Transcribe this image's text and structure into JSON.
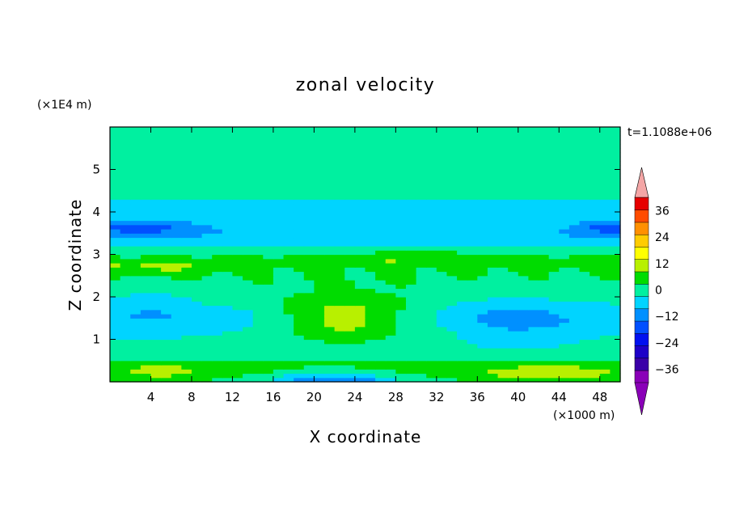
{
  "chart_data": {
    "type": "heatmap",
    "title": "zonal velocity",
    "xlabel": "X coordinate",
    "ylabel": "Z coordinate",
    "x_units": "(×1000 m)",
    "y_units": "(×1E4 m)",
    "time_label": "t=1.1088e+06",
    "xlim": [
      0,
      50
    ],
    "ylim": [
      0,
      6
    ],
    "x_ticks": [
      4,
      8,
      12,
      16,
      20,
      24,
      28,
      32,
      36,
      40,
      44,
      48
    ],
    "y_ticks": [
      1,
      2,
      3,
      4,
      5
    ],
    "colorbar": {
      "levels": [
        -42,
        -36,
        -30,
        -24,
        -18,
        -12,
        -6,
        0,
        6,
        12,
        18,
        24,
        30,
        36,
        42
      ],
      "tick_labels": [
        "36",
        "24",
        "12",
        "0",
        "−12",
        "−24",
        "−36"
      ],
      "tick_values": [
        36,
        24,
        12,
        0,
        -12,
        -24,
        -36
      ],
      "colors": [
        "#8a00b8",
        "#3a00a8",
        "#1e00c8",
        "#0010f0",
        "#0050ff",
        "#0090ff",
        "#00d4ff",
        "#00f0a0",
        "#00dc00",
        "#b8f000",
        "#ffff00",
        "#ffcc00",
        "#ff9000",
        "#ff4c00",
        "#e60000"
      ],
      "over_color": "#f4a6a6",
      "under_color": "#8a00b8"
    },
    "field": {
      "nx": 50,
      "nz": 60,
      "components": [
        {
          "shape": "zband",
          "z": 0.3,
          "w": 0.3,
          "amp": 6
        },
        {
          "shape": "zband",
          "z": 0.8,
          "w": 0.35,
          "amp": -2
        },
        {
          "shape": "zband",
          "z": 1.5,
          "w": 0.35,
          "amp": -6
        },
        {
          "shape": "zband",
          "z": 2.5,
          "w": 0.3,
          "amp": 3
        },
        {
          "shape": "zband",
          "z": 2.85,
          "w": 0.2,
          "amp": 5
        },
        {
          "shape": "zband",
          "z": 3.5,
          "w": 0.3,
          "amp": -8
        },
        {
          "shape": "zband",
          "z": 4.1,
          "w": 0.35,
          "amp": -3
        },
        {
          "shape": "blob",
          "x": 23,
          "z": 1.5,
          "sx": 7,
          "sz": 0.55,
          "amp": 17
        },
        {
          "shape": "blob",
          "x": 40,
          "z": 1.5,
          "sx": 5,
          "sz": 0.5,
          "amp": -6
        },
        {
          "shape": "blob",
          "x": 4,
          "z": 1.8,
          "sx": 4,
          "sz": 0.5,
          "amp": -4
        },
        {
          "shape": "blob",
          "x": 3,
          "z": 3.65,
          "sx": 5,
          "sz": 0.2,
          "amp": -10
        },
        {
          "shape": "blob",
          "x": 49,
          "z": 3.65,
          "sx": 3,
          "sz": 0.2,
          "amp": -10
        },
        {
          "shape": "blob",
          "x": 22,
          "z": 0.0,
          "sx": 6,
          "sz": 0.25,
          "amp": -18
        },
        {
          "shape": "blob",
          "x": 5,
          "z": 0.25,
          "sx": 5,
          "sz": 0.25,
          "amp": 6
        },
        {
          "shape": "blob",
          "x": 43,
          "z": 0.2,
          "sx": 7,
          "sz": 0.2,
          "amp": 9
        },
        {
          "shape": "blob",
          "x": 4,
          "z": 2.7,
          "sx": 6,
          "sz": 0.15,
          "amp": 6
        },
        {
          "shape": "blob",
          "x": 30,
          "z": 2.95,
          "sx": 5,
          "sz": 0.15,
          "amp": 6
        },
        {
          "shape": "blob",
          "x": 12,
          "z": 5.2,
          "sx": 16,
          "sz": 0.4,
          "amp": 3
        },
        {
          "shape": "blob",
          "x": 38,
          "z": 5.3,
          "sx": 14,
          "sz": 0.35,
          "amp": 3
        },
        {
          "shape": "blob",
          "x": 25,
          "z": 5.7,
          "sx": 10,
          "sz": 0.2,
          "amp": 2
        }
      ],
      "base": 2.5
    }
  }
}
